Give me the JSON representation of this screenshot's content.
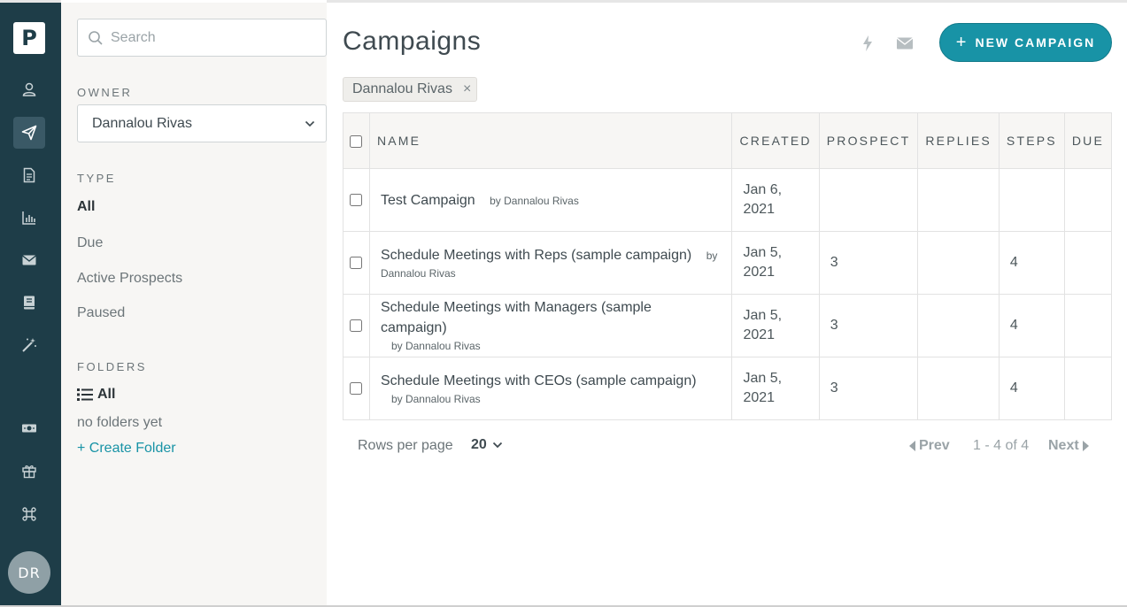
{
  "rail": {
    "logo": "P",
    "items": [
      {
        "icon": "person-icon"
      },
      {
        "icon": "paper-plane-icon",
        "active": true
      },
      {
        "icon": "document-icon"
      },
      {
        "icon": "bar-chart-icon"
      },
      {
        "icon": "envelope-icon"
      },
      {
        "icon": "book-icon"
      },
      {
        "icon": "magic-wand-icon"
      },
      {
        "icon": "money-icon"
      },
      {
        "icon": "gift-icon"
      },
      {
        "icon": "command-icon"
      }
    ],
    "avatar_initials": "DR"
  },
  "filters": {
    "search_placeholder": "Search",
    "owner_label": "OWNER",
    "owner_value": "Dannalou Rivas",
    "type_label": "TYPE",
    "types": [
      "All",
      "Due",
      "Active Prospects",
      "Paused"
    ],
    "folders_label": "FOLDERS",
    "folders_all": "All",
    "no_folders": "no folders yet",
    "create_folder": "+ Create Folder"
  },
  "header": {
    "title": "Campaigns",
    "new_campaign": "NEW CAMPAIGN",
    "new_campaign_plus": "+"
  },
  "chip": {
    "label": "Dannalou Rivas",
    "remove": "×"
  },
  "table": {
    "columns": [
      "NAME",
      "CREATED",
      "PROSPECT",
      "REPLIES",
      "STEPS",
      "DUE"
    ],
    "rows": [
      {
        "name": "Test Campaign",
        "by": "by Dannalou Rivas",
        "created": "Jan 6, 2021",
        "prospect": "",
        "replies": "",
        "steps": "",
        "due": ""
      },
      {
        "name": "Schedule Meetings with Reps (sample campaign)",
        "by": "by Dannalou Rivas",
        "created": "Jan 5, 2021",
        "prospect": "3",
        "replies": "",
        "steps": "4",
        "due": ""
      },
      {
        "name": "Schedule Meetings with Managers (sample campaign)",
        "by": "by Dannalou Rivas",
        "created": "Jan 5, 2021",
        "prospect": "3",
        "replies": "",
        "steps": "4",
        "due": ""
      },
      {
        "name": "Schedule Meetings with CEOs (sample campaign)",
        "by": "by Dannalou Rivas",
        "created": "Jan 5, 2021",
        "prospect": "3",
        "replies": "",
        "steps": "4",
        "due": ""
      }
    ]
  },
  "pagination": {
    "rows_per_page_label": "Rows per page",
    "rows_per_page": "20",
    "prev": "Prev",
    "range": "1 - 4 of 4",
    "next": "Next"
  },
  "colors": {
    "rail_bg": "#1e3d48",
    "accent": "#1893a6",
    "sidebar_bg": "#f7f6f4"
  }
}
